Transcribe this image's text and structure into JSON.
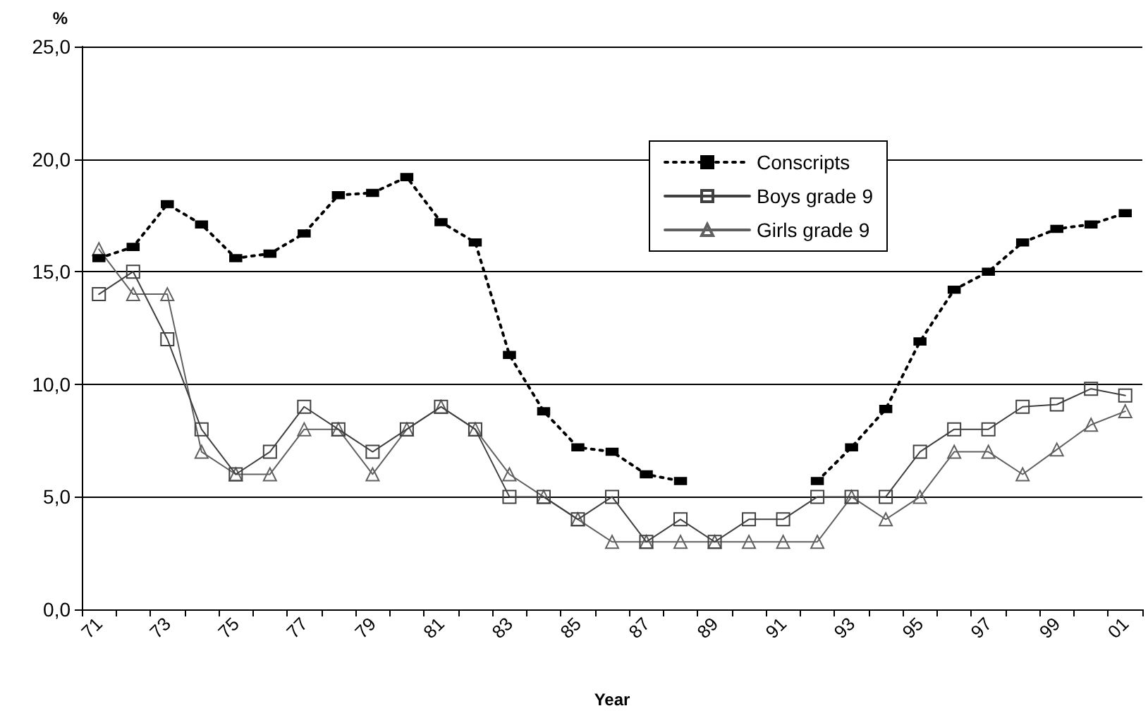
{
  "chart_data": {
    "type": "line",
    "xlabel": "Year",
    "ylabel": "%",
    "categories": [
      "71",
      null,
      "73",
      null,
      "75",
      null,
      "77",
      null,
      "79",
      null,
      "81",
      null,
      "83",
      null,
      "85",
      null,
      "87",
      null,
      "89",
      null,
      "91",
      null,
      "93",
      null,
      "95",
      null,
      "97",
      null,
      "99",
      null,
      "01"
    ],
    "series": [
      {
        "name": "Conscripts",
        "color": "#000000",
        "marker": "square",
        "line_style": "dotted",
        "values": [
          15.6,
          16.1,
          18.0,
          17.1,
          15.6,
          15.8,
          16.7,
          18.4,
          18.5,
          19.2,
          17.2,
          16.3,
          11.3,
          8.8,
          7.2,
          7.0,
          6.0,
          5.7,
          null,
          null,
          null,
          5.7,
          7.2,
          8.9,
          11.9,
          14.2,
          15.0,
          16.3,
          16.9,
          17.1,
          17.6
        ]
      },
      {
        "name": "Boys grade 9",
        "color": "#404040",
        "marker": "square",
        "line_style": "solid",
        "values": [
          14,
          15,
          12,
          8,
          6,
          7,
          9,
          8,
          7,
          8,
          9,
          8,
          5,
          5,
          4,
          5,
          3,
          4,
          3,
          4,
          4,
          5,
          5,
          5,
          7,
          8,
          8,
          9,
          9.1,
          9.8,
          9.5
        ]
      },
      {
        "name": "Girls grade 9",
        "color": "#606060",
        "marker": "triangle",
        "line_style": "solid",
        "values": [
          16,
          14,
          14,
          7,
          6,
          6,
          8,
          8,
          6,
          8,
          9,
          8,
          6,
          5,
          4,
          3,
          3,
          3,
          3,
          3,
          3,
          3,
          5,
          4,
          5,
          7,
          7,
          6,
          7.1,
          8.2,
          8.8
        ]
      }
    ],
    "ylim": [
      0,
      25
    ],
    "yticks": [
      {
        "value": 0,
        "label": "0,0"
      },
      {
        "value": 5,
        "label": "5,0"
      },
      {
        "value": 10,
        "label": "10,0"
      },
      {
        "value": 15,
        "label": "15,0"
      },
      {
        "value": 20,
        "label": "20,0"
      },
      {
        "value": 25,
        "label": "25,0"
      }
    ],
    "grid": "y",
    "legend": "top right"
  }
}
